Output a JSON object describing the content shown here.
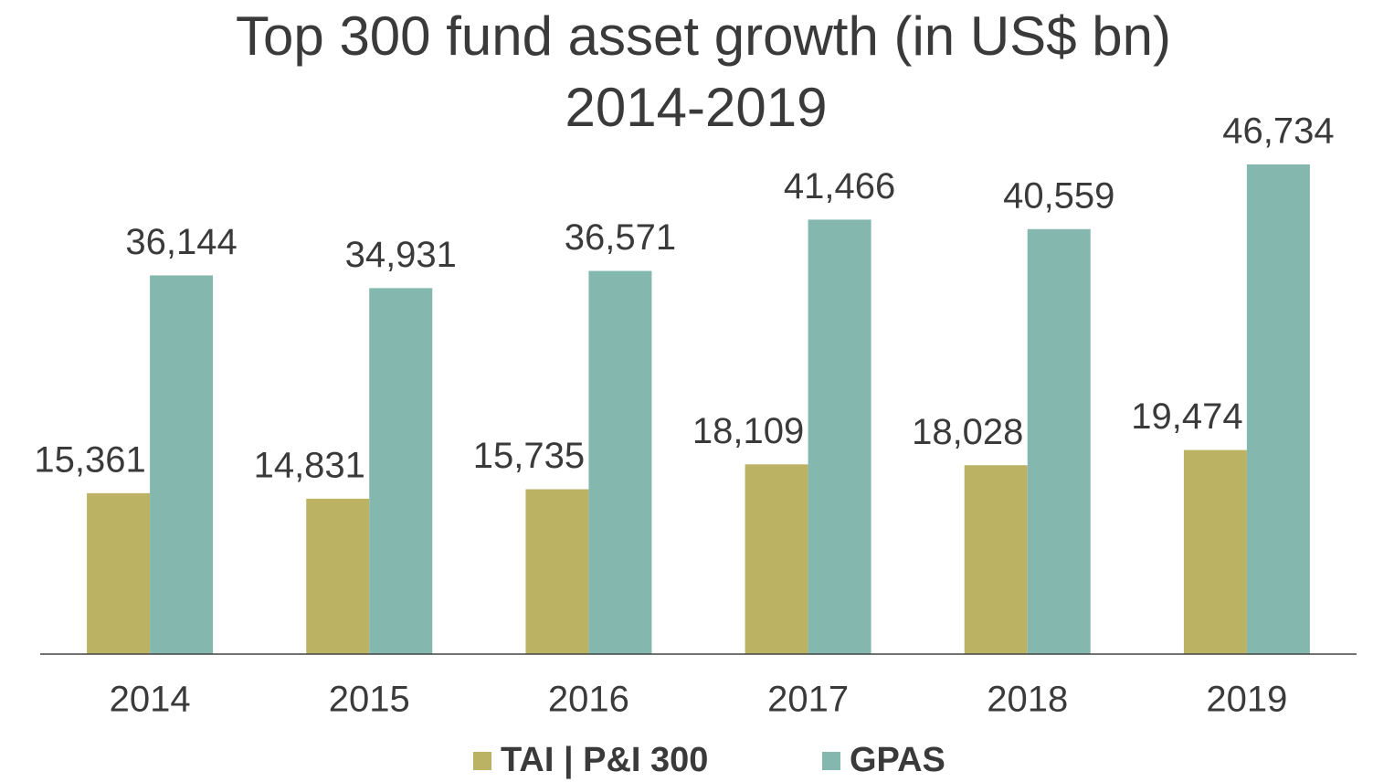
{
  "chart_data": {
    "type": "bar",
    "title": "Top 300 fund asset growth (in US$ bn)",
    "subtitle": "2014-2019",
    "categories": [
      "2014",
      "2015",
      "2016",
      "2017",
      "2018",
      "2019"
    ],
    "series": [
      {
        "name": "TAI | P&I 300",
        "color": "#bcb264",
        "values": [
          15361,
          14831,
          15735,
          18109,
          18028,
          19474
        ],
        "value_labels": [
          "15,361",
          "14,831",
          "15,735",
          "18,109",
          "18,028",
          "19,474"
        ]
      },
      {
        "name": "GPAS",
        "color": "#84b8ae",
        "values": [
          36144,
          34931,
          36571,
          41466,
          40559,
          46734
        ],
        "value_labels": [
          "36,144",
          "34,931",
          "36,571",
          "41,466",
          "40,559",
          "46,734"
        ]
      }
    ],
    "legend": "bottom"
  }
}
